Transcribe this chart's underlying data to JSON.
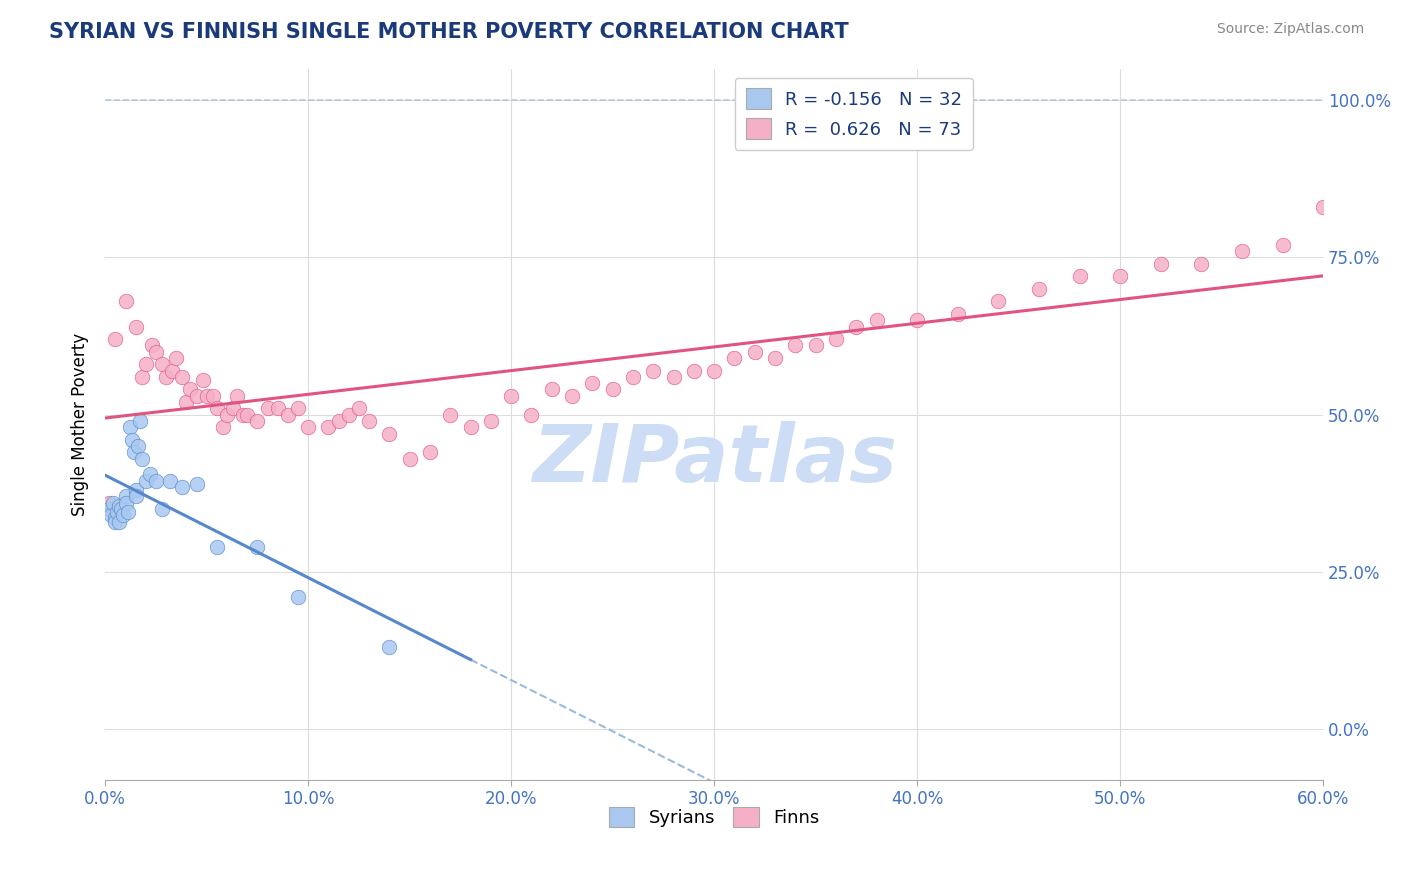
{
  "title": "SYRIAN VS FINNISH SINGLE MOTHER POVERTY CORRELATION CHART",
  "source": "Source: ZipAtlas.com",
  "xmin": 0.0,
  "xmax": 0.6,
  "ymin": -0.08,
  "ymax": 1.05,
  "legend_label_syrians": "Syrians",
  "legend_label_finns": "Finns",
  "R_syrians": "-0.156",
  "N_syrians": "32",
  "R_finns": "0.626",
  "N_finns": "73",
  "color_syrians": "#a8c8f0",
  "color_finns": "#f5b0c8",
  "color_syrians_line": "#5588cc",
  "color_finns_line": "#e05580",
  "color_dashed": "#99bbdd",
  "watermark_color": "#ccddf5",
  "syrians_x": [
    0.002,
    0.003,
    0.004,
    0.005,
    0.005,
    0.006,
    0.007,
    0.007,
    0.008,
    0.009,
    0.01,
    0.01,
    0.011,
    0.012,
    0.013,
    0.014,
    0.015,
    0.015,
    0.016,
    0.017,
    0.018,
    0.02,
    0.022,
    0.025,
    0.028,
    0.032,
    0.038,
    0.045,
    0.055,
    0.075,
    0.095,
    0.14
  ],
  "syrians_y": [
    0.35,
    0.34,
    0.36,
    0.335,
    0.33,
    0.345,
    0.355,
    0.33,
    0.35,
    0.34,
    0.37,
    0.36,
    0.345,
    0.48,
    0.46,
    0.44,
    0.38,
    0.37,
    0.45,
    0.49,
    0.43,
    0.395,
    0.405,
    0.395,
    0.35,
    0.395,
    0.385,
    0.39,
    0.29,
    0.29,
    0.21,
    0.13
  ],
  "finns_x": [
    0.002,
    0.005,
    0.01,
    0.015,
    0.018,
    0.02,
    0.023,
    0.025,
    0.028,
    0.03,
    0.033,
    0.035,
    0.038,
    0.04,
    0.042,
    0.045,
    0.048,
    0.05,
    0.053,
    0.055,
    0.058,
    0.06,
    0.063,
    0.065,
    0.068,
    0.07,
    0.075,
    0.08,
    0.085,
    0.09,
    0.095,
    0.1,
    0.11,
    0.115,
    0.12,
    0.125,
    0.13,
    0.14,
    0.15,
    0.16,
    0.17,
    0.18,
    0.19,
    0.2,
    0.21,
    0.22,
    0.23,
    0.24,
    0.25,
    0.26,
    0.27,
    0.28,
    0.29,
    0.3,
    0.31,
    0.32,
    0.33,
    0.34,
    0.35,
    0.36,
    0.37,
    0.38,
    0.4,
    0.42,
    0.44,
    0.46,
    0.48,
    0.5,
    0.52,
    0.54,
    0.56,
    0.58,
    0.6
  ],
  "finns_y": [
    0.36,
    0.62,
    0.68,
    0.64,
    0.56,
    0.58,
    0.61,
    0.6,
    0.58,
    0.56,
    0.57,
    0.59,
    0.56,
    0.52,
    0.54,
    0.53,
    0.555,
    0.53,
    0.53,
    0.51,
    0.48,
    0.5,
    0.51,
    0.53,
    0.5,
    0.5,
    0.49,
    0.51,
    0.51,
    0.5,
    0.51,
    0.48,
    0.48,
    0.49,
    0.5,
    0.51,
    0.49,
    0.47,
    0.43,
    0.44,
    0.5,
    0.48,
    0.49,
    0.53,
    0.5,
    0.54,
    0.53,
    0.55,
    0.54,
    0.56,
    0.57,
    0.56,
    0.57,
    0.57,
    0.59,
    0.6,
    0.59,
    0.61,
    0.61,
    0.62,
    0.64,
    0.65,
    0.65,
    0.66,
    0.68,
    0.7,
    0.72,
    0.72,
    0.74,
    0.74,
    0.76,
    0.77,
    0.83
  ]
}
